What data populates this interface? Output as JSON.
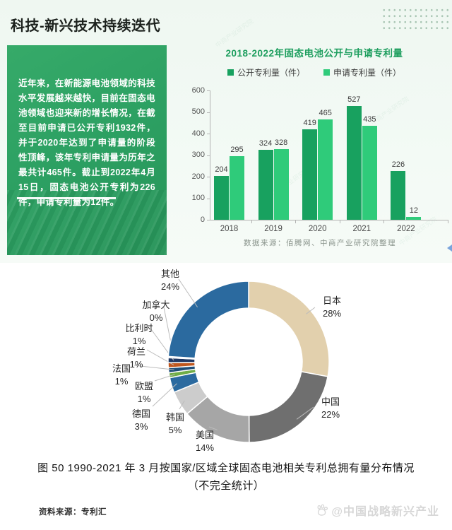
{
  "page": {
    "section_title": "科技-新兴技术持续迭代",
    "watermark_diagonal": "中商产业研究院",
    "panel_text": "近年来，在新能源电池领域的科技水平发展越来越快，目前在固态电池领域也迎来新的增长情况，在截至目前申请已公开专利1932件，并于2020年达到了申请量的阶段性顶峰，该年专利申请量为历年之最共计465件。截止到2022年4月15日，固态电池公开专利为226件，申请专利量为12件。",
    "bar_source": "数据来源：佰腾网、中商产业研究院整理",
    "caption_line1": "图 50 1990-2021 年 3 月按国家/区域全球固态电池相关专利总拥有量分布情况",
    "caption_line2": "（不完全统计）",
    "pie_source": "资料来源：专利汇",
    "footer_watermark": "@中国战略新兴产业"
  },
  "colors": {
    "series_open": "#18a15f",
    "series_apply": "#2fcb7a",
    "title_green": "#1d9e5e",
    "leader_line": "#bcbcbc"
  },
  "chart_data": [
    {
      "type": "bar",
      "title": "2018-2022年固态电池公开与申请专利量",
      "categories": [
        "2018",
        "2019",
        "2020",
        "2021",
        "2022"
      ],
      "series": [
        {
          "name": "公开专利量（件）",
          "color": "#18a15f",
          "values": [
            204,
            324,
            419,
            527,
            226
          ]
        },
        {
          "name": "申请专利量（件）",
          "color": "#2fcb7a",
          "values": [
            295,
            328,
            465,
            435,
            12
          ]
        }
      ],
      "ylim": [
        0,
        600
      ],
      "ytick_step": 100,
      "grid": false,
      "legend_position": "top"
    },
    {
      "type": "pie",
      "donut": true,
      "start_angle": "top",
      "direction": "clockwise",
      "title": "1990-2021年3月按国家/区域全球固态电池相关专利总拥有量分布情况（不完全统计）",
      "slices": [
        {
          "label": "日本",
          "pct": 28,
          "color": "#e2d0ad"
        },
        {
          "label": "中国",
          "pct": 22,
          "color": "#6f6f6f"
        },
        {
          "label": "美国",
          "pct": 14,
          "color": "#a6a6a6"
        },
        {
          "label": "韩国",
          "pct": 5,
          "color": "#cccccc"
        },
        {
          "label": "德国",
          "pct": 3,
          "color": "#2b6a9f"
        },
        {
          "label": "欧盟",
          "pct": 1,
          "color": "#70ad47"
        },
        {
          "label": "法国",
          "pct": 1,
          "color": "#1f4e79"
        },
        {
          "label": "荷兰",
          "pct": 1,
          "color": "#c0571f"
        },
        {
          "label": "比利时",
          "pct": 1,
          "color": "#203864"
        },
        {
          "label": "加拿大",
          "pct": 0,
          "color": "#9dc3e6"
        },
        {
          "label": "其他",
          "pct": 24,
          "color": "#2b6a9f"
        }
      ]
    }
  ]
}
